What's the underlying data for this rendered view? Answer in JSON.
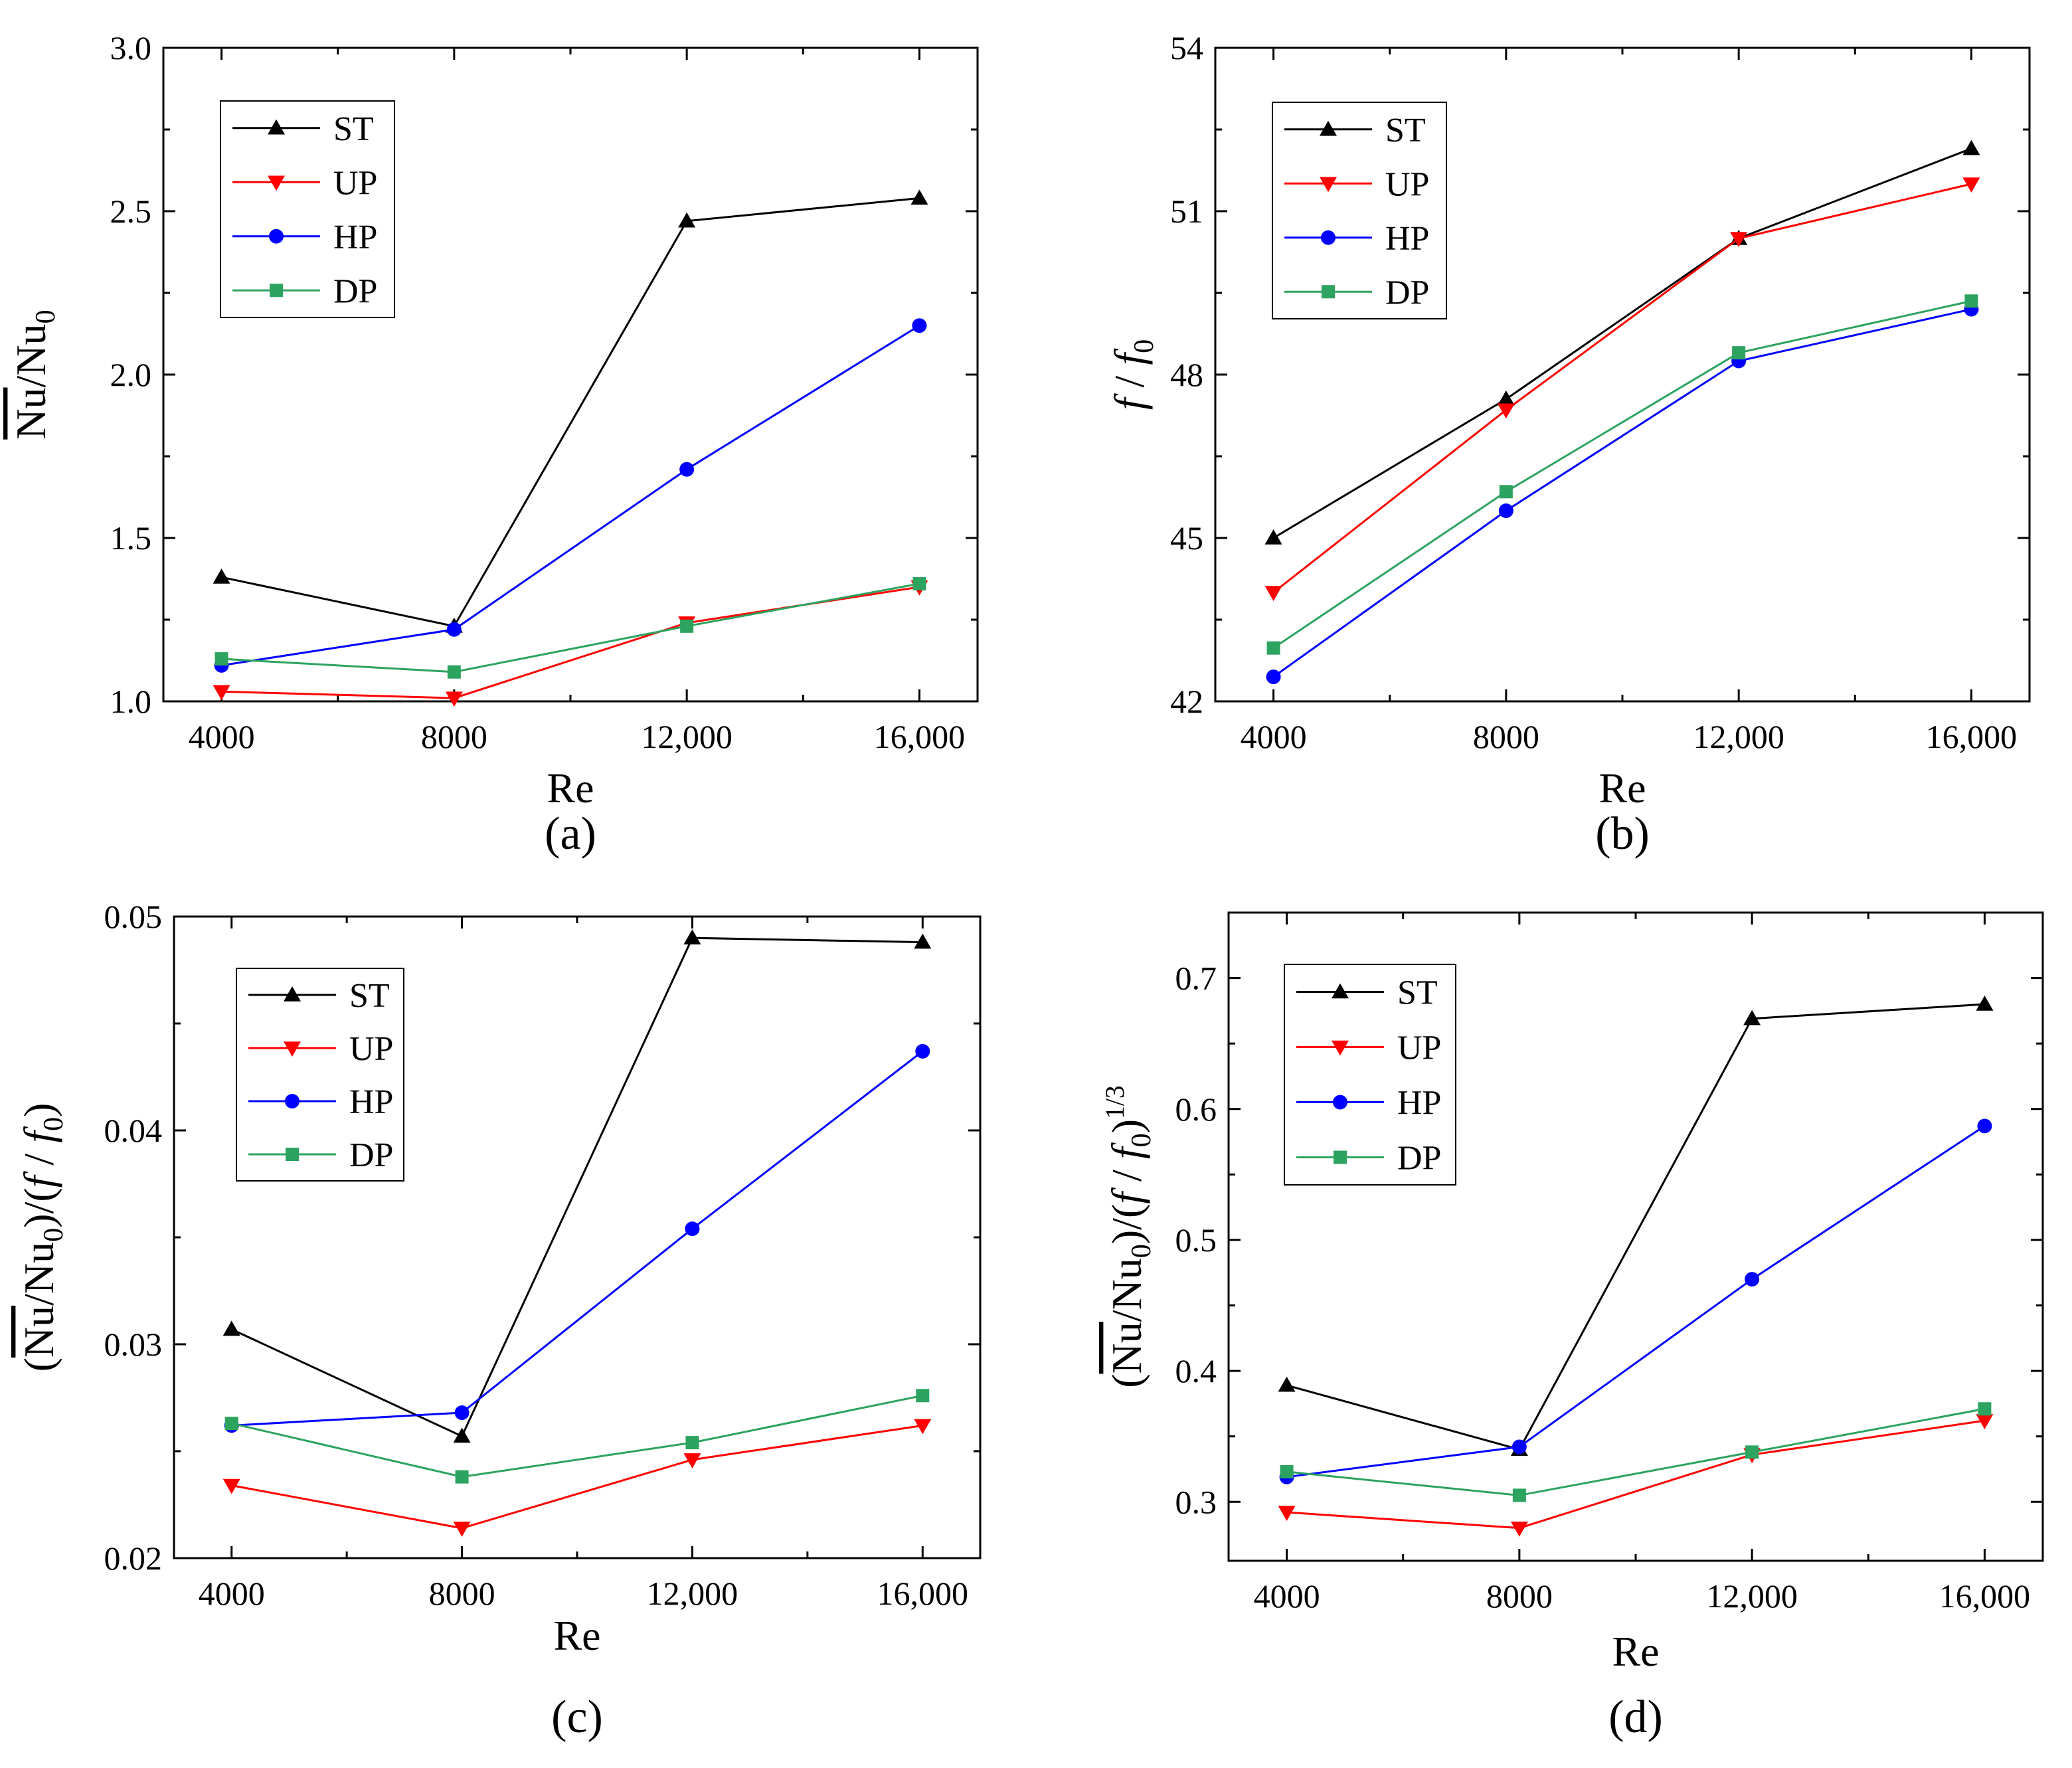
{
  "chart_data": [
    {
      "type": "line",
      "panel_label": "(a)",
      "title": "",
      "xlabel": "Re",
      "ylabel": "Nu/Nu0",
      "ylabel_parts": {
        "overline": "Nu",
        "slash": "/Nu",
        "sub": "0"
      },
      "x": [
        4000,
        8000,
        12000,
        16000
      ],
      "xlim": [
        3000,
        17000
      ],
      "xticks": [
        4000,
        8000,
        12000,
        16000
      ],
      "xtick_labels": [
        "4000",
        "8000",
        "12,000",
        "16,000"
      ],
      "ylim": [
        1.0,
        3.0
      ],
      "yticks": [
        1.0,
        1.5,
        2.0,
        2.5,
        3.0
      ],
      "ytick_labels": [
        "1.0",
        "1.5",
        "2.0",
        "2.5",
        "3.0"
      ],
      "legend": "top-left",
      "series": [
        {
          "name": "ST",
          "values": [
            1.38,
            1.23,
            2.47,
            2.54
          ]
        },
        {
          "name": "UP",
          "values": [
            1.03,
            1.01,
            1.24,
            1.35
          ]
        },
        {
          "name": "HP",
          "values": [
            1.11,
            1.22,
            1.71,
            2.15
          ]
        },
        {
          "name": "DP",
          "values": [
            1.13,
            1.09,
            1.23,
            1.36
          ]
        }
      ]
    },
    {
      "type": "line",
      "panel_label": "(b)",
      "title": "",
      "xlabel": "Re",
      "ylabel": "f / f0",
      "ylabel_parts": {
        "f1": "f",
        "slash": " / ",
        "f2": "f",
        "sub": "0"
      },
      "x": [
        4000,
        8000,
        12000,
        16000
      ],
      "xlim": [
        3000,
        17000
      ],
      "xticks": [
        4000,
        8000,
        12000,
        16000
      ],
      "xtick_labels": [
        "4000",
        "8000",
        "12,000",
        "16,000"
      ],
      "ylim": [
        42,
        54
      ],
      "yticks": [
        42,
        45,
        48,
        51,
        54
      ],
      "ytick_labels": [
        "42",
        "45",
        "48",
        "51",
        "54"
      ],
      "legend": "top-left",
      "series": [
        {
          "name": "ST",
          "values": [
            45.0,
            47.55,
            50.5,
            52.15
          ]
        },
        {
          "name": "UP",
          "values": [
            44.0,
            47.35,
            50.5,
            51.5
          ]
        },
        {
          "name": "HP",
          "values": [
            42.45,
            45.5,
            48.25,
            49.2
          ]
        },
        {
          "name": "DP",
          "values": [
            42.98,
            45.85,
            48.4,
            49.35
          ]
        }
      ]
    },
    {
      "type": "line",
      "panel_label": "(c)",
      "title": "",
      "xlabel": "Re",
      "ylabel": "(Nu/Nu0)/(f / f0)",
      "ylabel_parts": {
        "open": "(",
        "overline": "Nu",
        "slash": "/Nu",
        "sub": "0",
        "mid": ")/(",
        "f1": "f",
        "sep": " / ",
        "f2": "f",
        "sub2": "0",
        "close": ")"
      },
      "x": [
        4000,
        8000,
        12000,
        16000
      ],
      "xlim": [
        3000,
        17000
      ],
      "xticks": [
        4000,
        8000,
        12000,
        16000
      ],
      "xtick_labels": [
        "4000",
        "8000",
        "12,000",
        "16,000"
      ],
      "ylim": [
        0.02,
        0.05
      ],
      "yticks": [
        0.02,
        0.03,
        0.04,
        0.05
      ],
      "ytick_labels": [
        "0.02",
        "0.03",
        "0.04",
        "0.05"
      ],
      "legend": "top-left",
      "series": [
        {
          "name": "ST",
          "values": [
            0.0307,
            0.0257,
            0.049,
            0.0488
          ]
        },
        {
          "name": "UP",
          "values": [
            0.0234,
            0.0214,
            0.0246,
            0.0262
          ]
        },
        {
          "name": "HP",
          "values": [
            0.0262,
            0.0268,
            0.0354,
            0.0437
          ]
        },
        {
          "name": "DP",
          "values": [
            0.0263,
            0.0238,
            0.0254,
            0.0276
          ]
        }
      ]
    },
    {
      "type": "line",
      "panel_label": "(d)",
      "title": "",
      "xlabel": "Re",
      "ylabel": "(Nu/Nu0)/(f / f0)^1/3",
      "ylabel_parts": {
        "open": "(",
        "overline": "Nu",
        "slash": "/Nu",
        "sub": "0",
        "mid": ")/(",
        "f1": "f",
        "sep": " / ",
        "f2": "f",
        "sub2": "0",
        "close": ")",
        "sup": "1/3"
      },
      "x": [
        4000,
        8000,
        12000,
        16000
      ],
      "xlim": [
        3000,
        17000
      ],
      "xticks": [
        4000,
        8000,
        12000,
        16000
      ],
      "xtick_labels": [
        "4000",
        "8000",
        "12,000",
        "16,000"
      ],
      "ylim": [
        0.255,
        0.75
      ],
      "yticks": [
        0.3,
        0.4,
        0.5,
        0.6,
        0.7
      ],
      "ytick_labels": [
        "0.3",
        "0.4",
        "0.5",
        "0.6",
        "0.7"
      ],
      "legend": "top-left",
      "series": [
        {
          "name": "ST",
          "values": [
            0.389,
            0.34,
            0.669,
            0.68
          ]
        },
        {
          "name": "UP",
          "values": [
            0.292,
            0.28,
            0.336,
            0.362
          ]
        },
        {
          "name": "HP",
          "values": [
            0.319,
            0.342,
            0.47,
            0.587
          ]
        },
        {
          "name": "DP",
          "values": [
            0.323,
            0.305,
            0.338,
            0.371
          ]
        }
      ]
    }
  ],
  "series_style": {
    "ST": {
      "color": "#000000",
      "marker": "triangle-up"
    },
    "UP": {
      "color": "#ff0000",
      "marker": "triangle-down"
    },
    "HP": {
      "color": "#0000ff",
      "marker": "circle"
    },
    "DP": {
      "color": "#2ca35f",
      "marker": "square"
    }
  }
}
